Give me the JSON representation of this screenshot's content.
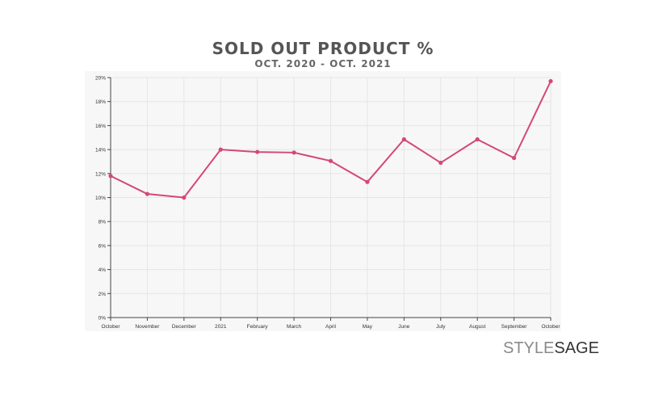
{
  "chart_data": {
    "type": "line",
    "title": "SOLD OUT PRODUCT %",
    "subtitle": "OCT. 2020 - OCT. 2021",
    "xlabel": "",
    "ylabel": "",
    "categories": [
      "October",
      "November",
      "December",
      "2021",
      "February",
      "March",
      "April",
      "May",
      "June",
      "July",
      "August",
      "September",
      "October"
    ],
    "series": [
      {
        "values": [
          11.8,
          10.3,
          10.0,
          14.0,
          13.8,
          13.75,
          13.05,
          11.3,
          14.85,
          12.9,
          14.85,
          13.3,
          19.7
        ],
        "color": "#d4477a"
      }
    ],
    "ylim": [
      0,
      20
    ],
    "yticks": [
      "0%",
      "2%",
      "4%",
      "6%",
      "8%",
      "10%",
      "12%",
      "14%",
      "16%",
      "18%",
      "20%"
    ],
    "grid": true,
    "legend": "none",
    "background": "#f7f7f7"
  },
  "branding": {
    "logo_part1": "STYLE",
    "logo_part2": "SAGE"
  }
}
